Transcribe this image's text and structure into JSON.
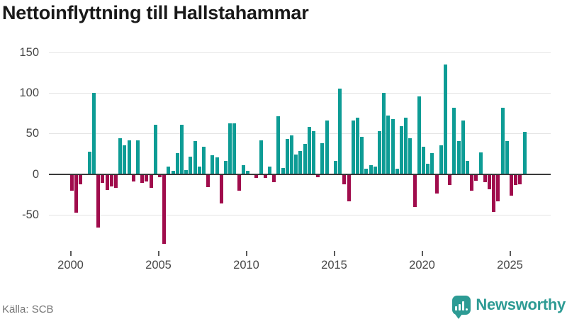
{
  "title": "Nettoinflyttning till Hallstahammar",
  "source": {
    "label": "Källa: SCB"
  },
  "brand": {
    "name": "Newsworthy",
    "icon": "bar-chart-speech-bubble-icon"
  },
  "colors": {
    "positive": "#0d9c95",
    "negative": "#a00c4c",
    "brand_teal": "#2d9b94",
    "grid": "#e4e4e4",
    "zero_line": "#3a3a3a",
    "axis_text": "#474747",
    "title_text": "#191919",
    "source_text": "#757575"
  },
  "chart_data": {
    "type": "bar",
    "title": "Nettoinflyttning till Hallstahammar",
    "xlabel": "",
    "ylabel": "",
    "grid": "horizontal",
    "legend": "none",
    "ylim": [
      -90,
      155
    ],
    "y_ticks": [
      150,
      100,
      50,
      0,
      -50
    ],
    "y_tick_labels": [
      "150",
      "100",
      "50",
      "0",
      "-50"
    ],
    "x_ticks": [
      2000,
      2005,
      2010,
      2015,
      2020,
      2025
    ],
    "x_tick_labels": [
      "2000",
      "2005",
      "2010",
      "2015",
      "2020",
      "2025"
    ],
    "categories": [
      "2000Q1",
      "2000Q2",
      "2000Q3",
      "2000Q4",
      "2001Q1",
      "2001Q2",
      "2001Q3",
      "2001Q4",
      "2002Q1",
      "2002Q2",
      "2002Q3",
      "2002Q4",
      "2003Q1",
      "2003Q2",
      "2003Q3",
      "2003Q4",
      "2004Q1",
      "2004Q2",
      "2004Q3",
      "2004Q4",
      "2005Q1",
      "2005Q2",
      "2005Q3",
      "2005Q4",
      "2006Q1",
      "2006Q2",
      "2006Q3",
      "2006Q4",
      "2007Q1",
      "2007Q2",
      "2007Q3",
      "2007Q4",
      "2008Q1",
      "2008Q2",
      "2008Q3",
      "2008Q4",
      "2009Q1",
      "2009Q2",
      "2009Q3",
      "2009Q4",
      "2010Q1",
      "2010Q2",
      "2010Q3",
      "2010Q4",
      "2011Q1",
      "2011Q2",
      "2011Q3",
      "2011Q4",
      "2012Q1",
      "2012Q2",
      "2012Q3",
      "2012Q4",
      "2013Q1",
      "2013Q2",
      "2013Q3",
      "2013Q4",
      "2014Q1",
      "2014Q2",
      "2014Q3",
      "2014Q4",
      "2015Q1",
      "2015Q2",
      "2015Q3",
      "2015Q4",
      "2016Q1",
      "2016Q2",
      "2016Q3",
      "2016Q4",
      "2017Q1",
      "2017Q2",
      "2017Q3",
      "2017Q4",
      "2018Q1",
      "2018Q2",
      "2018Q3",
      "2018Q4",
      "2019Q1",
      "2019Q2",
      "2019Q3",
      "2019Q4",
      "2020Q1",
      "2020Q2",
      "2020Q3",
      "2020Q4",
      "2021Q1",
      "2021Q2",
      "2021Q3",
      "2021Q4",
      "2022Q1",
      "2022Q2",
      "2022Q3",
      "2022Q4",
      "2023Q1",
      "2023Q2",
      "2023Q3",
      "2023Q4",
      "2024Q1",
      "2024Q2",
      "2024Q3",
      "2024Q4",
      "2025Q1",
      "2025Q2",
      "2025Q3",
      "2025Q4"
    ],
    "values": [
      -20,
      -47,
      -12,
      0,
      27,
      99,
      -65,
      -10,
      -19,
      -14,
      -16,
      43,
      35,
      41,
      -8,
      41,
      -10,
      -8,
      -16,
      60,
      -3,
      -85,
      8,
      3,
      25,
      60,
      4,
      21,
      40,
      8,
      33,
      -15,
      22,
      20,
      -35,
      15,
      62,
      62,
      -20,
      10,
      3,
      0,
      -4,
      41,
      -4,
      8,
      -9,
      70,
      7,
      42,
      47,
      23,
      28,
      36,
      57,
      52,
      -3,
      37,
      65,
      0,
      15,
      104,
      -12,
      -33,
      65,
      69,
      45,
      6,
      10,
      8,
      52,
      99,
      71,
      67,
      6,
      58,
      69,
      43,
      -40,
      95,
      33,
      12,
      25,
      -23,
      35,
      134,
      -13,
      81,
      40,
      65,
      15,
      -20,
      -7,
      26,
      -9,
      -18,
      -46,
      -33,
      81,
      40,
      -26,
      -13,
      -12,
      51
    ]
  }
}
